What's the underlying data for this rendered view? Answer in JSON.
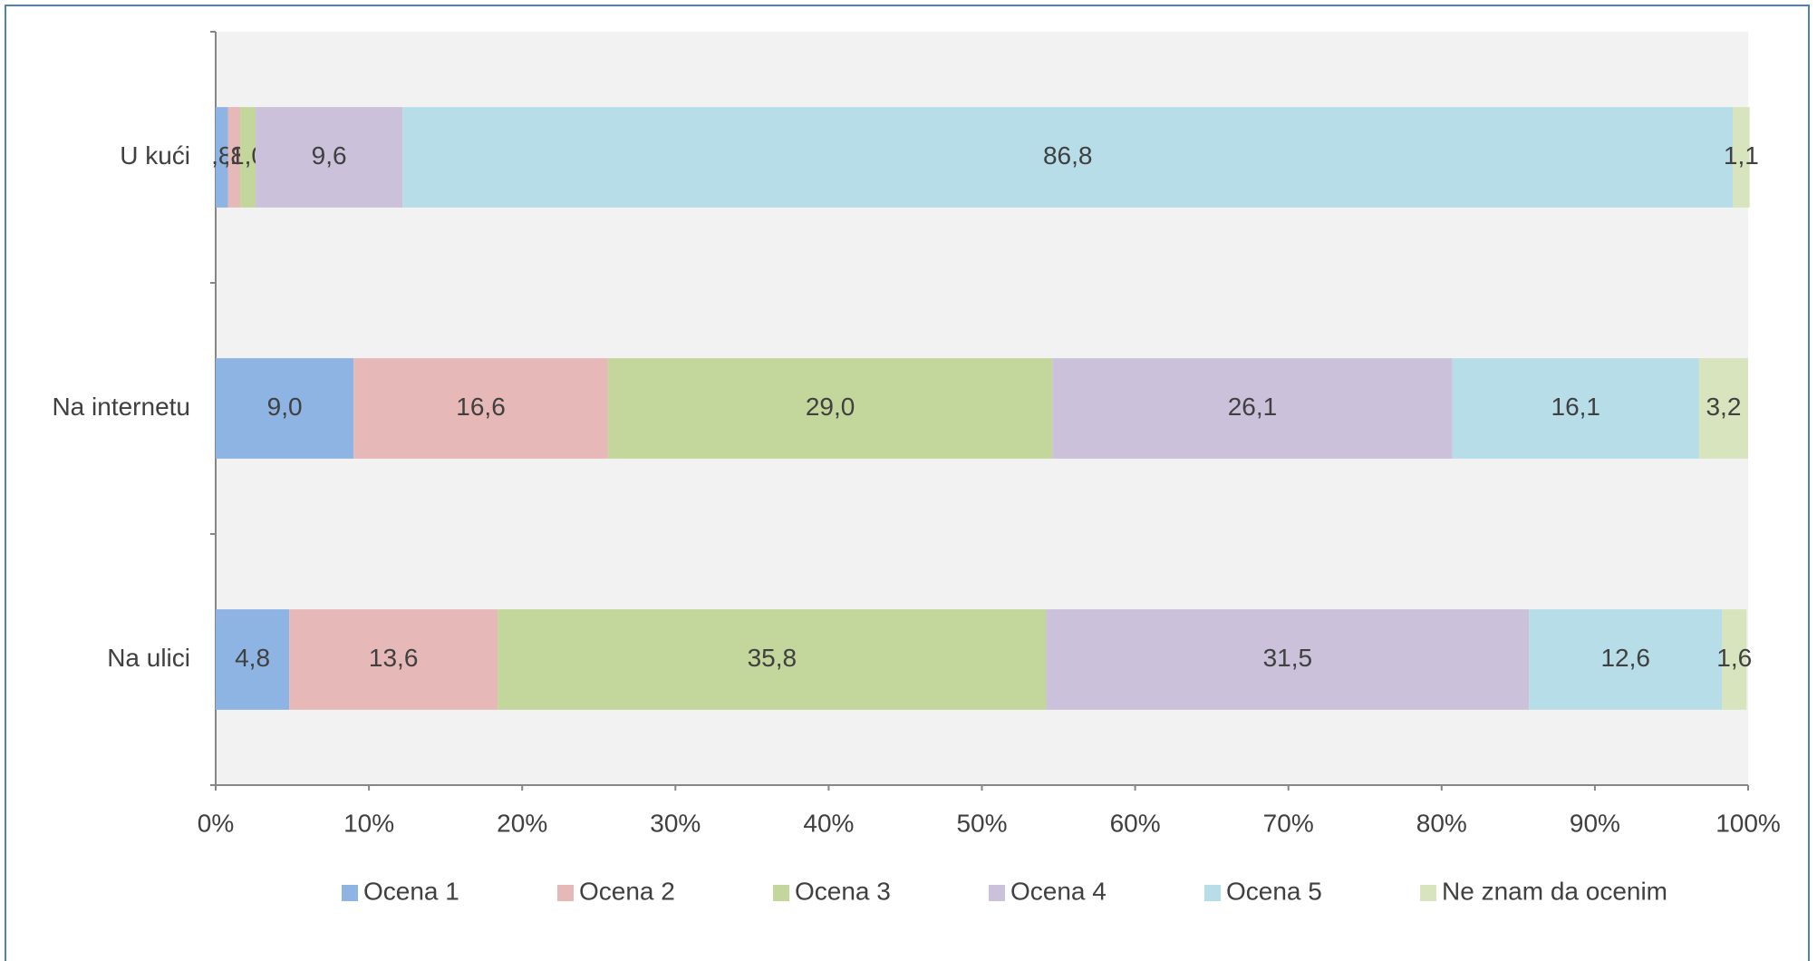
{
  "chart_data": {
    "type": "stacked_barh",
    "categories": [
      "U kući",
      "Na internetu",
      "Na ulici"
    ],
    "series": [
      {
        "name": "Ocena 1",
        "color": "#8eb4e3",
        "values": [
          0.8,
          9.0,
          4.8
        ],
        "value_labels": [
          ",8",
          "9,0",
          "4,8"
        ]
      },
      {
        "name": "Ocena 2",
        "color": "#e6b9b8",
        "values": [
          0.8,
          16.6,
          13.6
        ],
        "value_labels": [
          ",8",
          "16,6",
          "13,6"
        ]
      },
      {
        "name": "Ocena 3",
        "color": "#c3d69b",
        "values": [
          1.0,
          29.0,
          35.8
        ],
        "value_labels": [
          "1,0",
          "29,0",
          "35,8"
        ]
      },
      {
        "name": "Ocena 4",
        "color": "#ccc1da",
        "values": [
          9.6,
          26.1,
          31.5
        ],
        "value_labels": [
          "9,6",
          "26,1",
          "31,5"
        ]
      },
      {
        "name": "Ocena 5",
        "color": "#b7dee8",
        "values": [
          86.8,
          16.1,
          12.6
        ],
        "value_labels": [
          "86,8",
          "16,1",
          "12,6"
        ]
      },
      {
        "name": "Ne znam da ocenim",
        "color": "#d7e4bd",
        "values": [
          1.1,
          3.2,
          1.6
        ],
        "value_labels": [
          "1,1",
          "3,2",
          "1,6"
        ]
      }
    ],
    "xlim": [
      0,
      100
    ],
    "xticks": [
      {
        "value": 0,
        "label": "0%"
      },
      {
        "value": 10,
        "label": "10%"
      },
      {
        "value": 20,
        "label": "20%"
      },
      {
        "value": 30,
        "label": "30%"
      },
      {
        "value": 40,
        "label": "40%"
      },
      {
        "value": 50,
        "label": "50%"
      },
      {
        "value": 60,
        "label": "60%"
      },
      {
        "value": 70,
        "label": "70%"
      },
      {
        "value": 80,
        "label": "80%"
      },
      {
        "value": 90,
        "label": "90%"
      },
      {
        "value": 100,
        "label": "100%"
      }
    ],
    "legend": "bottom"
  }
}
